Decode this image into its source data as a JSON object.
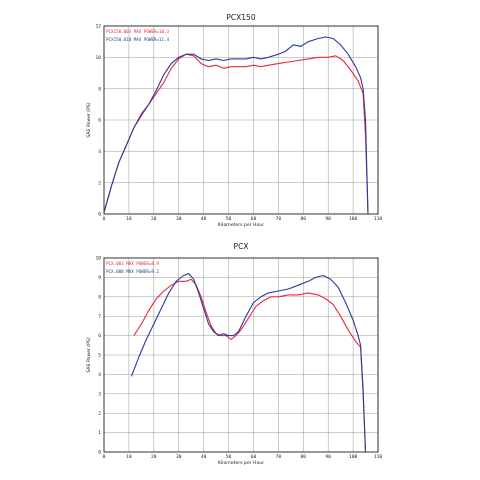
{
  "chart_data": [
    {
      "type": "line",
      "title": "PCX150",
      "xlabel": "Kilometers per Hour",
      "ylabel": "SAE Power (PS)",
      "xlim": [
        0,
        110
      ],
      "ylim": [
        0,
        12
      ],
      "xticks": [
        0,
        10,
        20,
        30,
        40,
        50,
        60,
        70,
        80,
        90,
        100,
        110
      ],
      "yticks": [
        0,
        2,
        4,
        6,
        8,
        10,
        12
      ],
      "grid": true,
      "legend_position": "top-left",
      "series": [
        {
          "name": "PCX150.003 MAX POWER=10.3",
          "color": "#e8283c",
          "points": [
            [
              0,
              0.1
            ],
            [
              3,
              1.8
            ],
            [
              6,
              3.3
            ],
            [
              9,
              4.4
            ],
            [
              12,
              5.5
            ],
            [
              15,
              6.4
            ],
            [
              18,
              7.0
            ],
            [
              21,
              7.7
            ],
            [
              24,
              8.4
            ],
            [
              27,
              9.3
            ],
            [
              30,
              9.9
            ],
            [
              33,
              10.2
            ],
            [
              36,
              10.1
            ],
            [
              39,
              9.6
            ],
            [
              42,
              9.4
            ],
            [
              45,
              9.5
            ],
            [
              48,
              9.3
            ],
            [
              51,
              9.4
            ],
            [
              54,
              9.4
            ],
            [
              57,
              9.4
            ],
            [
              60,
              9.5
            ],
            [
              63,
              9.4
            ],
            [
              66,
              9.5
            ],
            [
              70,
              9.6
            ],
            [
              74,
              9.7
            ],
            [
              78,
              9.8
            ],
            [
              82,
              9.9
            ],
            [
              86,
              10.0
            ],
            [
              90,
              10.0
            ],
            [
              93,
              10.1
            ],
            [
              96,
              9.8
            ],
            [
              99,
              9.2
            ],
            [
              102,
              8.5
            ],
            [
              104,
              7.7
            ],
            [
              105,
              5.0
            ],
            [
              106,
              0.0
            ]
          ]
        },
        {
          "name": "PCX150.010 MAX POWER=11.4",
          "color": "#283c9a",
          "points": [
            [
              0,
              0.1
            ],
            [
              3,
              1.8
            ],
            [
              6,
              3.3
            ],
            [
              9,
              4.4
            ],
            [
              12,
              5.5
            ],
            [
              15,
              6.3
            ],
            [
              18,
              7.0
            ],
            [
              21,
              7.9
            ],
            [
              24,
              8.9
            ],
            [
              27,
              9.6
            ],
            [
              30,
              10.0
            ],
            [
              33,
              10.2
            ],
            [
              36,
              10.2
            ],
            [
              39,
              9.9
            ],
            [
              42,
              9.8
            ],
            [
              45,
              9.9
            ],
            [
              48,
              9.8
            ],
            [
              51,
              9.9
            ],
            [
              54,
              9.9
            ],
            [
              57,
              9.9
            ],
            [
              60,
              10.0
            ],
            [
              63,
              9.9
            ],
            [
              66,
              10.0
            ],
            [
              70,
              10.2
            ],
            [
              73,
              10.4
            ],
            [
              76,
              10.8
            ],
            [
              79,
              10.7
            ],
            [
              82,
              11.0
            ],
            [
              86,
              11.2
            ],
            [
              89,
              11.3
            ],
            [
              92,
              11.2
            ],
            [
              95,
              10.8
            ],
            [
              98,
              10.2
            ],
            [
              101,
              9.4
            ],
            [
              103,
              8.7
            ],
            [
              104,
              8.0
            ],
            [
              105,
              6.0
            ],
            [
              106,
              0.0
            ]
          ]
        }
      ]
    },
    {
      "type": "line",
      "title": "PCX",
      "xlabel": "Kilometers per Hour",
      "ylabel": "SAE Power (PS)",
      "xlim": [
        0,
        110
      ],
      "ylim": [
        0,
        10
      ],
      "xticks": [
        0,
        10,
        20,
        30,
        40,
        50,
        60,
        70,
        80,
        90,
        100,
        110
      ],
      "yticks": [
        0,
        1,
        2,
        3,
        4,
        5,
        6,
        7,
        8,
        9,
        10
      ],
      "grid": true,
      "legend_position": "top-left",
      "series": [
        {
          "name": "PCX.003 MAX POWER=8.9",
          "color": "#e8283c",
          "points": [
            [
              12,
              6.0
            ],
            [
              15,
              6.6
            ],
            [
              18,
              7.3
            ],
            [
              21,
              7.9
            ],
            [
              24,
              8.3
            ],
            [
              27,
              8.6
            ],
            [
              30,
              8.8
            ],
            [
              33,
              8.8
            ],
            [
              35,
              8.9
            ],
            [
              37,
              8.6
            ],
            [
              39,
              8.0
            ],
            [
              41,
              7.2
            ],
            [
              43,
              6.5
            ],
            [
              45,
              6.1
            ],
            [
              47,
              6.0
            ],
            [
              49,
              6.0
            ],
            [
              51,
              5.8
            ],
            [
              53,
              6.0
            ],
            [
              55,
              6.3
            ],
            [
              58,
              6.9
            ],
            [
              61,
              7.5
            ],
            [
              64,
              7.8
            ],
            [
              67,
              8.0
            ],
            [
              70,
              8.0
            ],
            [
              74,
              8.1
            ],
            [
              78,
              8.1
            ],
            [
              82,
              8.2
            ],
            [
              86,
              8.1
            ],
            [
              89,
              7.9
            ],
            [
              92,
              7.6
            ],
            [
              95,
              7.0
            ],
            [
              98,
              6.3
            ],
            [
              101,
              5.7
            ],
            [
              103,
              5.4
            ],
            [
              104,
              3.0
            ],
            [
              105,
              0.0
            ]
          ]
        },
        {
          "name": "PCX.008 MAX POWER=9.2",
          "color": "#283c9a",
          "points": [
            [
              11,
              3.9
            ],
            [
              14,
              4.9
            ],
            [
              17,
              5.8
            ],
            [
              20,
              6.6
            ],
            [
              23,
              7.4
            ],
            [
              26,
              8.2
            ],
            [
              29,
              8.8
            ],
            [
              32,
              9.1
            ],
            [
              34,
              9.2
            ],
            [
              36,
              8.9
            ],
            [
              38,
              8.2
            ],
            [
              40,
              7.4
            ],
            [
              42,
              6.6
            ],
            [
              44,
              6.2
            ],
            [
              46,
              6.0
            ],
            [
              48,
              6.1
            ],
            [
              50,
              6.0
            ],
            [
              52,
              6.0
            ],
            [
              54,
              6.2
            ],
            [
              57,
              7.0
            ],
            [
              60,
              7.7
            ],
            [
              63,
              8.0
            ],
            [
              66,
              8.2
            ],
            [
              70,
              8.3
            ],
            [
              74,
              8.4
            ],
            [
              78,
              8.6
            ],
            [
              82,
              8.8
            ],
            [
              85,
              9.0
            ],
            [
              88,
              9.1
            ],
            [
              91,
              8.9
            ],
            [
              94,
              8.5
            ],
            [
              97,
              7.7
            ],
            [
              100,
              6.8
            ],
            [
              102,
              6.0
            ],
            [
              103,
              5.5
            ],
            [
              104,
              3.2
            ],
            [
              105,
              0.0
            ]
          ]
        }
      ]
    }
  ]
}
